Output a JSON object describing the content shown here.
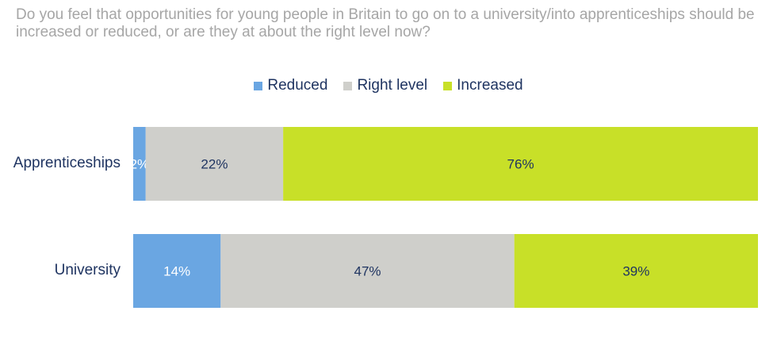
{
  "question": "Do you feel that opportunities for young people in Britain to go on to a university/into apprenticeships should be increased or reduced, or are they at about the right level now?",
  "chart_data": {
    "type": "bar",
    "orientation": "horizontal",
    "stacked": true,
    "categories": [
      "Apprenticeships",
      "University"
    ],
    "series": [
      {
        "name": "Reduced",
        "values": [
          2,
          14
        ],
        "labels": [
          "2%",
          "14%"
        ],
        "color": "#6aa6e2",
        "label_color": "#ffffff"
      },
      {
        "name": "Right level",
        "values": [
          22,
          47
        ],
        "labels": [
          "22%",
          "47%"
        ],
        "color": "#cfcfcb",
        "label_color": "#1f3461"
      },
      {
        "name": "Increased",
        "values": [
          76,
          39
        ],
        "labels": [
          "76%",
          "39%"
        ],
        "color": "#c8e028",
        "label_color": "#1f3461"
      }
    ],
    "legend_position": "top",
    "grid": false
  }
}
